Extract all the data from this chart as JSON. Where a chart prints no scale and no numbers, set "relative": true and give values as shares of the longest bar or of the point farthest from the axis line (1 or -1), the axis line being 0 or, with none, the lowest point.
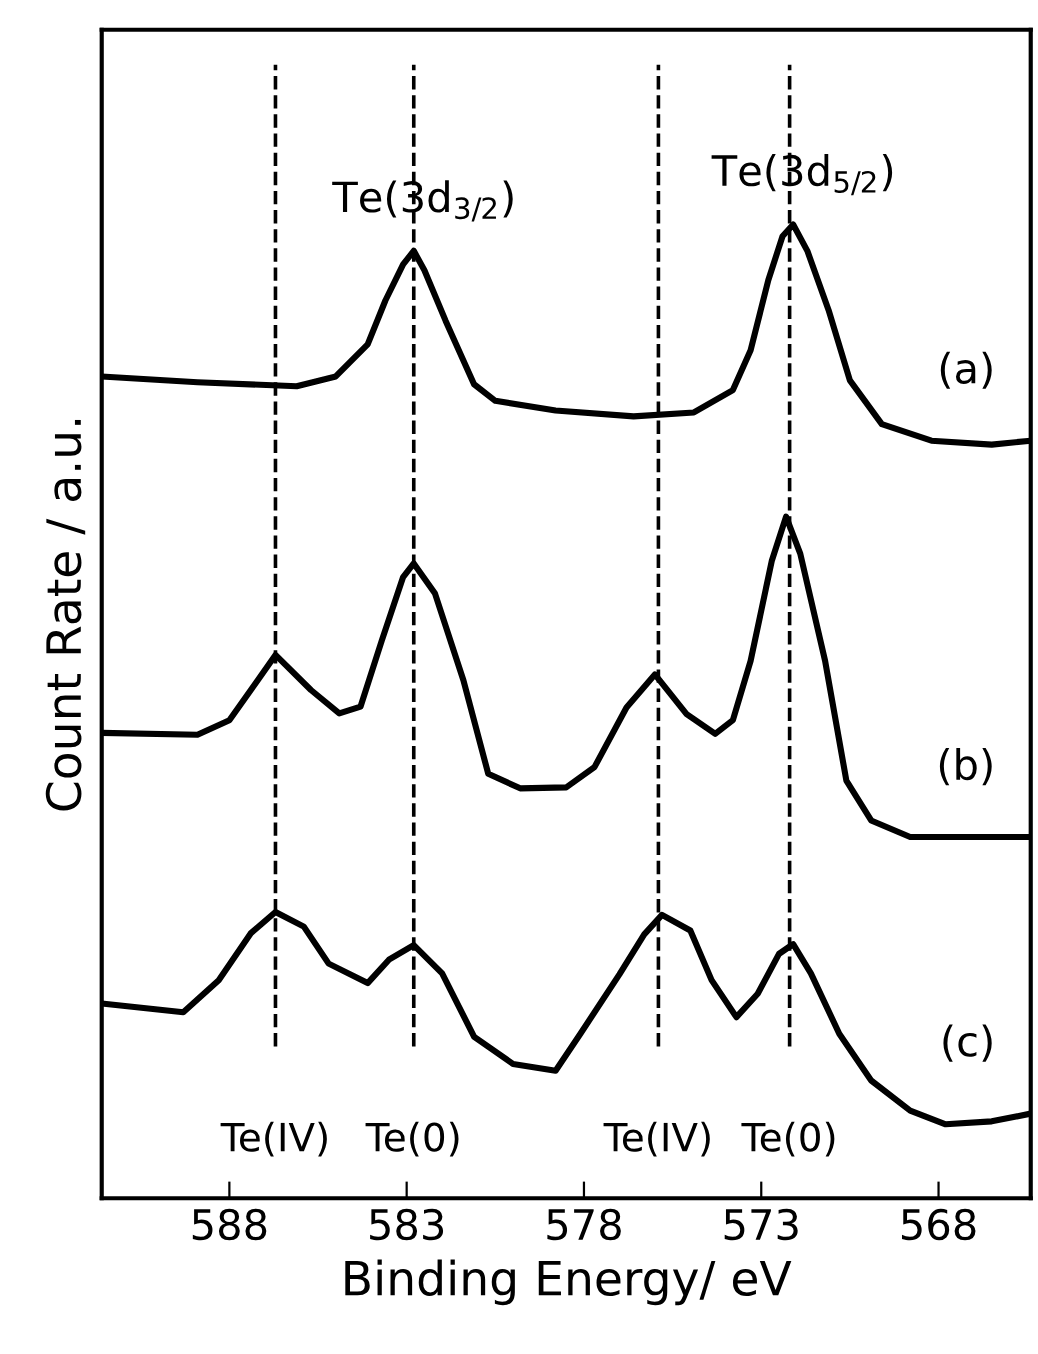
{
  "chart_data": {
    "type": "line",
    "relative": true,
    "xlabel": "Binding Energy/ eV",
    "ylabel": "Count Rate / a.u.",
    "xlim": [
      591.6,
      565.4
    ],
    "xticks": [
      588,
      583,
      578,
      573,
      568
    ],
    "tick_labels": "x",
    "grid": false,
    "legend": false,
    "marker": "none",
    "line_style": "solid",
    "series": [
      {
        "name": "(a)",
        "color": "#000000",
        "x": [
          591.6,
          588.9,
          586.1,
          585.0,
          584.1,
          583.6,
          583.1,
          582.8,
          582.5,
          581.9,
          581.1,
          580.5,
          578.8,
          576.6,
          574.9,
          573.8,
          573.3,
          572.8,
          572.4,
          572.1,
          571.7,
          571.1,
          570.5,
          569.6,
          568.2,
          566.5,
          565.4
        ],
        "values": [
          0.844,
          0.838,
          0.834,
          0.844,
          0.877,
          0.922,
          0.959,
          0.973,
          0.953,
          0.901,
          0.836,
          0.819,
          0.809,
          0.803,
          0.807,
          0.83,
          0.871,
          0.943,
          0.988,
          1.0,
          0.973,
          0.912,
          0.84,
          0.795,
          0.778,
          0.774,
          0.778
        ]
      },
      {
        "name": "(b)",
        "color": "#000000",
        "x": [
          591.6,
          588.9,
          588.0,
          587.2,
          586.7,
          585.7,
          584.9,
          584.3,
          583.7,
          583.1,
          582.8,
          582.2,
          581.4,
          580.7,
          579.8,
          578.5,
          577.7,
          576.8,
          576.0,
          575.1,
          574.3,
          573.8,
          573.3,
          572.7,
          572.3,
          571.9,
          571.2,
          570.6,
          569.9,
          568.8,
          565.4
        ],
        "values": [
          0.478,
          0.476,
          0.491,
          0.532,
          0.558,
          0.522,
          0.498,
          0.505,
          0.573,
          0.638,
          0.652,
          0.621,
          0.532,
          0.436,
          0.421,
          0.422,
          0.443,
          0.504,
          0.538,
          0.497,
          0.477,
          0.491,
          0.552,
          0.655,
          0.7,
          0.662,
          0.552,
          0.429,
          0.388,
          0.371,
          0.371
        ]
      },
      {
        "name": "(c)",
        "color": "#000000",
        "x": [
          591.6,
          589.3,
          588.3,
          587.4,
          586.7,
          585.9,
          585.2,
          584.1,
          583.5,
          582.8,
          582.0,
          581.1,
          580.0,
          578.8,
          578.1,
          577.0,
          576.3,
          575.8,
          575.0,
          574.4,
          573.7,
          573.1,
          572.5,
          572.1,
          571.6,
          570.8,
          569.9,
          568.8,
          567.8,
          566.5,
          565.4
        ],
        "values": [
          0.2,
          0.191,
          0.224,
          0.272,
          0.294,
          0.279,
          0.241,
          0.221,
          0.245,
          0.26,
          0.231,
          0.166,
          0.138,
          0.131,
          0.169,
          0.23,
          0.271,
          0.291,
          0.275,
          0.224,
          0.186,
          0.21,
          0.251,
          0.261,
          0.231,
          0.169,
          0.121,
          0.09,
          0.076,
          0.079,
          0.087
        ]
      }
    ],
    "ref_lines": [
      {
        "axis": "x",
        "value": 586.7,
        "label": "Te(IV)",
        "line_style": "dashed",
        "color": "#000000"
      },
      {
        "axis": "x",
        "value": 582.8,
        "label": "Te(0)",
        "line_style": "dashed",
        "color": "#000000"
      },
      {
        "axis": "x",
        "value": 575.9,
        "label": "Te(IV)",
        "line_style": "dashed",
        "color": "#000000"
      },
      {
        "axis": "x",
        "value": 572.2,
        "label": "Te(0)",
        "line_style": "dashed",
        "color": "#000000"
      }
    ],
    "annotations": [
      {
        "text": "Te(3d$_{3/2}$)",
        "x": 582.8,
        "y": 0.973
      },
      {
        "text": "Te(3d$_{5/2}$)",
        "x": 572.1,
        "y": 1.0
      }
    ]
  }
}
